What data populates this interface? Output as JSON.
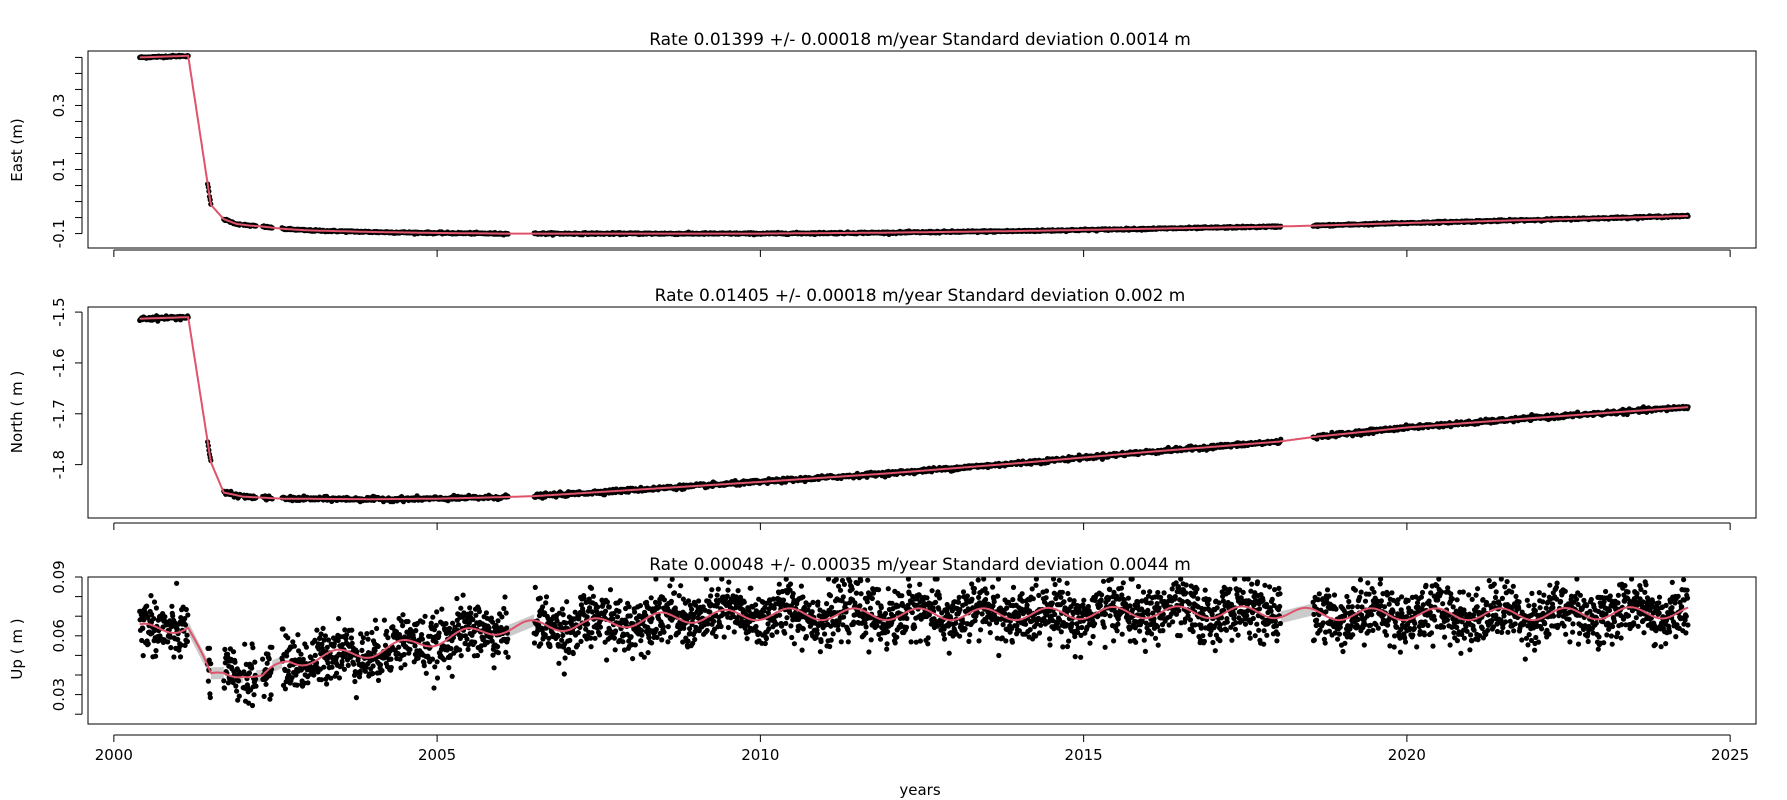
{
  "colors": {
    "background": "#ffffff",
    "points": "#000000",
    "model_line": "#df536b",
    "band": "#bdbdbd"
  },
  "figure": {
    "xlabel": "years"
  },
  "chart_data": [
    {
      "type": "scatter",
      "title": "Rate 0.01399 +/- 0.00018 m/year       Standard deviation 0.0014 m",
      "ylabel": "East  (m)",
      "xlim": [
        1999.6,
        2025.4
      ],
      "ylim": [
        -0.145,
        0.47
      ],
      "x_ticks": [
        "2000",
        "2005",
        "2010",
        "2015",
        "2020",
        "2025"
      ],
      "x_ticks_labeled": false,
      "y_ticks": [
        -0.1,
        -0.05,
        0,
        0.05,
        0.1,
        0.15,
        0.2,
        0.25,
        0.3,
        0.35,
        0.4,
        0.45
      ],
      "y_tick_labels": [
        "-0.1",
        "",
        "0.1",
        "",
        "0.3",
        ""
      ],
      "y_tick_label_values": [
        -0.1,
        0.1,
        0.3
      ],
      "noise": 0.0014,
      "band": false,
      "segments": [
        [
          2000.4,
          2001.15
        ],
        [
          2001.45,
          2001.5
        ],
        [
          2001.7,
          2001.95
        ],
        [
          2002.0,
          2002.2
        ],
        [
          2002.3,
          2002.45
        ],
        [
          2002.6,
          2006.1
        ],
        [
          2006.5,
          2018.05
        ],
        [
          2018.55,
          2024.35
        ]
      ],
      "series": [
        {
          "name": "",
          "x": [
            2000.4,
            2001.15,
            2001.5,
            2001.7,
            2001.9,
            2002.1,
            2002.3,
            2002.6,
            2003.0,
            2004.0,
            2005.0,
            2006.0,
            2006.5,
            2008.0,
            2010.0,
            2012.0,
            2014.0,
            2016.0,
            2018.0,
            2018.6,
            2020.0,
            2022.0,
            2024.35
          ],
          "y": [
            0.45,
            0.455,
            -0.01,
            -0.055,
            -0.07,
            -0.075,
            -0.078,
            -0.085,
            -0.09,
            -0.095,
            -0.098,
            -0.1,
            -0.1,
            -0.1,
            -0.1,
            -0.097,
            -0.092,
            -0.085,
            -0.078,
            -0.075,
            -0.067,
            -0.057,
            -0.045
          ]
        }
      ]
    },
    {
      "type": "scatter",
      "title": "Rate 0.01405 +/- 0.00018 m/year       Standard deviation 0.002 m",
      "ylabel": "North   ( m )",
      "xlim": [
        1999.6,
        2025.4
      ],
      "ylim": [
        -1.905,
        -1.49
      ],
      "x_ticks": [
        "2000",
        "2005",
        "2010",
        "2015",
        "2020",
        "2025"
      ],
      "x_ticks_labeled": false,
      "y_ticks": [
        -1.5,
        -1.6,
        -1.7,
        -1.8
      ],
      "y_tick_labels": [
        "-1.5",
        "-1.6",
        "-1.7",
        "-1.8"
      ],
      "y_tick_label_values": [
        -1.5,
        -1.6,
        -1.7,
        -1.8
      ],
      "noise": 0.002,
      "band": false,
      "segments": [
        [
          2000.4,
          2001.15
        ],
        [
          2001.45,
          2001.5
        ],
        [
          2001.7,
          2001.95
        ],
        [
          2002.0,
          2002.2
        ],
        [
          2002.3,
          2002.45
        ],
        [
          2002.6,
          2006.1
        ],
        [
          2006.5,
          2018.05
        ],
        [
          2018.55,
          2024.35
        ]
      ],
      "series": [
        {
          "name": "",
          "x": [
            2000.4,
            2001.15,
            2001.5,
            2001.7,
            2002.0,
            2002.3,
            2002.6,
            2004.0,
            2005.0,
            2006.0,
            2006.5,
            2008.0,
            2010.0,
            2012.0,
            2014.0,
            2016.0,
            2018.0,
            2018.6,
            2020.0,
            2022.0,
            2024.35
          ],
          "y": [
            -1.513,
            -1.51,
            -1.795,
            -1.855,
            -1.863,
            -1.865,
            -1.867,
            -1.868,
            -1.867,
            -1.864,
            -1.862,
            -1.85,
            -1.834,
            -1.817,
            -1.797,
            -1.775,
            -1.755,
            -1.745,
            -1.727,
            -1.708,
            -1.687
          ]
        }
      ]
    },
    {
      "type": "scatter",
      "title": "Rate 0.00048 +/- 0.00035 m/year       Standard deviation 0.0044 m",
      "ylabel": "Up    ( m )",
      "xlim": [
        1999.6,
        2025.4
      ],
      "ylim": [
        0.015,
        0.09
      ],
      "x_ticks": [
        "2000",
        "2005",
        "2010",
        "2015",
        "2020",
        "2025"
      ],
      "x_ticks_labeled": true,
      "y_ticks": [
        0.09,
        0.08,
        0.07,
        0.06,
        0.05,
        0.04,
        0.03,
        0.02
      ],
      "y_tick_labels": [
        "0.09",
        "",
        "",
        "0.06",
        "",
        "",
        "0.03",
        ""
      ],
      "y_tick_label_values": [
        0.09,
        0.06,
        0.03
      ],
      "noise": 0.0044,
      "band": true,
      "seasonal_amplitude": 0.003,
      "segments": [
        [
          2000.4,
          2001.15
        ],
        [
          2001.45,
          2001.5
        ],
        [
          2001.7,
          2001.95
        ],
        [
          2002.0,
          2002.2
        ],
        [
          2002.3,
          2002.45
        ],
        [
          2002.6,
          2006.1
        ],
        [
          2006.5,
          2018.05
        ],
        [
          2018.55,
          2024.35
        ]
      ],
      "series": [
        {
          "name": "",
          "x": [
            2000.4,
            2001.15,
            2001.5,
            2001.7,
            2002.0,
            2002.3,
            2002.7,
            2004.0,
            2005.0,
            2006.0,
            2006.5,
            2007.5,
            2008.5,
            2010.0,
            2012.0,
            2014.0,
            2016.0,
            2018.0,
            2018.6,
            2020.0,
            2022.0,
            2024.35
          ],
          "y": [
            0.063,
            0.065,
            0.038,
            0.041,
            0.042,
            0.038,
            0.047,
            0.052,
            0.058,
            0.064,
            0.065,
            0.066,
            0.069,
            0.071,
            0.071,
            0.071,
            0.072,
            0.072,
            0.071,
            0.071,
            0.071,
            0.072
          ]
        }
      ]
    }
  ]
}
